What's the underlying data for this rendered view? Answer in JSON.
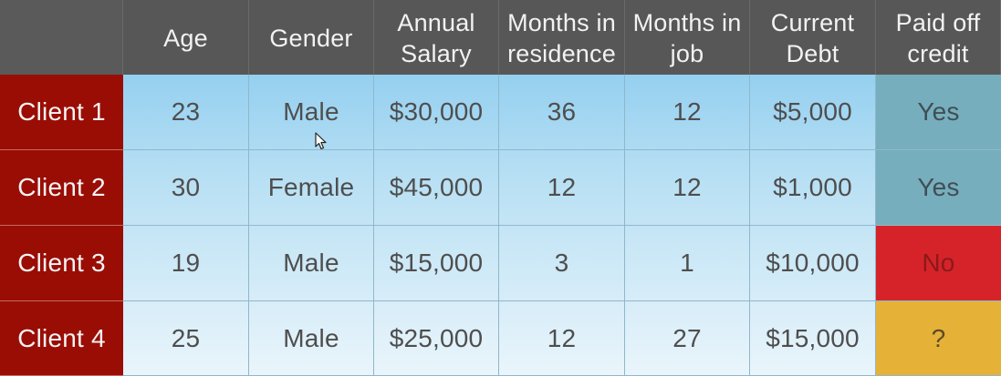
{
  "headers": [
    "",
    "Age",
    "Gender",
    "Annual Salary",
    "Months in residence",
    "Months in job",
    "Current Debt",
    "Paid off credit"
  ],
  "rows": [
    {
      "label": "Client 1",
      "age": "23",
      "gender": "Male",
      "salary": "$30,000",
      "residence": "36",
      "job": "12",
      "debt": "$5,000",
      "paid": "Yes",
      "paid_color": "#77aebd"
    },
    {
      "label": "Client 2",
      "age": "30",
      "gender": "Female",
      "salary": "$45,000",
      "residence": "12",
      "job": "12",
      "debt": "$1,000",
      "paid": "Yes",
      "paid_color": "#77aebd"
    },
    {
      "label": "Client 3",
      "age": "19",
      "gender": "Male",
      "salary": "$15,000",
      "residence": "3",
      "job": "1",
      "debt": "$10,000",
      "paid": "No",
      "paid_color": "#d6232a"
    },
    {
      "label": "Client 4",
      "age": "25",
      "gender": "Male",
      "salary": "$25,000",
      "residence": "12",
      "job": "27",
      "debt": "$15,000",
      "paid": "?",
      "paid_color": "#e5b237"
    }
  ],
  "colors": {
    "header_bg": "#575757",
    "row_label_bg": "#9a0d05",
    "data_gradient_top": "#95d0f0",
    "data_gradient_bottom": "#eaf5fb"
  },
  "icons": {
    "cursor": "mouse-pointer-icon"
  }
}
